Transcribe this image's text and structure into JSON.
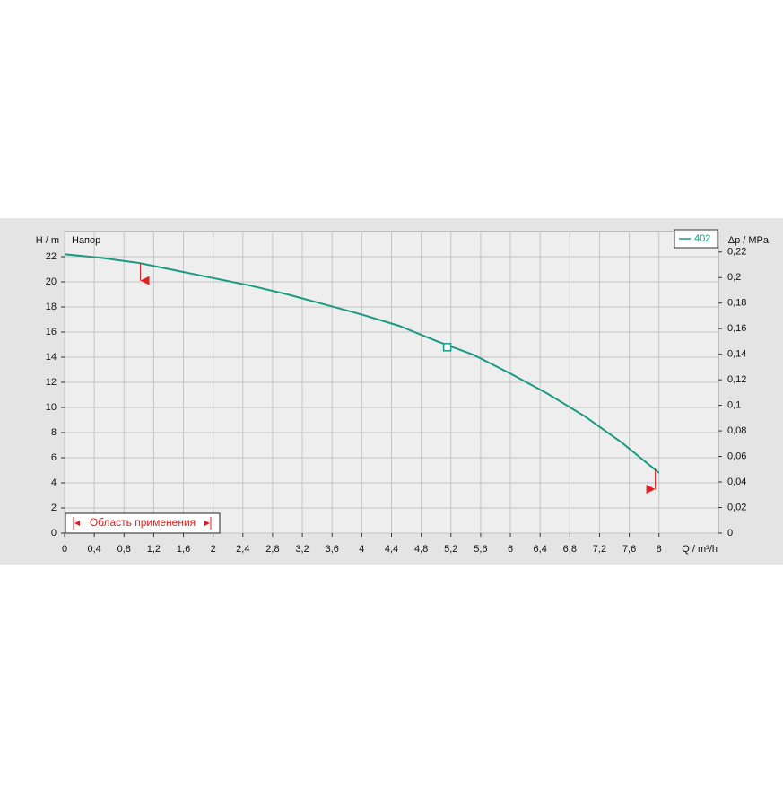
{
  "chart_data": {
    "type": "line",
    "subtitle": "Напор",
    "x_label": "Q / m³/h",
    "y_label": "H / m",
    "y2_label": "Δp / MPa",
    "xlim": [
      0,
      8.8
    ],
    "ylim": [
      0,
      24
    ],
    "y2lim": [
      0,
      0.236
    ],
    "xticks": [
      0,
      {
        "value": 0.4,
        "label": "0,4"
      },
      {
        "value": 0.8,
        "label": "0,8"
      },
      {
        "value": 1.2,
        "label": "1,2"
      },
      {
        "value": 1.6,
        "label": "1,6"
      },
      2,
      {
        "value": 2.4,
        "label": "2,4"
      },
      {
        "value": 2.8,
        "label": "2,8"
      },
      {
        "value": 3.2,
        "label": "3,2"
      },
      {
        "value": 3.6,
        "label": "3,6"
      },
      4,
      {
        "value": 4.4,
        "label": "4,4"
      },
      {
        "value": 4.8,
        "label": "4,8"
      },
      {
        "value": 5.2,
        "label": "5,2"
      },
      {
        "value": 5.6,
        "label": "5,6"
      },
      6,
      {
        "value": 6.4,
        "label": "6,4"
      },
      {
        "value": 6.8,
        "label": "6,8"
      },
      {
        "value": 7.2,
        "label": "7,2"
      },
      {
        "value": 7.6,
        "label": "7,6"
      },
      8
    ],
    "yticks": [
      0,
      2,
      4,
      6,
      8,
      10,
      12,
      14,
      16,
      18,
      20,
      22
    ],
    "y2ticks": [
      0,
      {
        "value": 0.02,
        "label": "0,02"
      },
      {
        "value": 0.04,
        "label": "0,04"
      },
      {
        "value": 0.06,
        "label": "0,06"
      },
      {
        "value": 0.08,
        "label": "0,08"
      },
      {
        "value": 0.1,
        "label": "0,1"
      },
      {
        "value": 0.12,
        "label": "0,12"
      },
      {
        "value": 0.14,
        "label": "0,14"
      },
      {
        "value": 0.16,
        "label": "0,16"
      },
      {
        "value": 0.18,
        "label": "0,18"
      },
      {
        "value": 0.2,
        "label": "0,2"
      },
      {
        "value": 0.22,
        "label": "0,22"
      }
    ],
    "grid": true,
    "legend": "top-right",
    "series": [
      {
        "name": "402",
        "color": "#1a9a80",
        "x": [
          0,
          0.5,
          1,
          1.5,
          2,
          2.5,
          3,
          3.5,
          4,
          4.5,
          5,
          5.5,
          6,
          6.5,
          7,
          7.5,
          8
        ],
        "values": [
          22.2,
          21.9,
          21.5,
          20.9,
          20.3,
          19.7,
          19.0,
          18.2,
          17.4,
          16.5,
          15.3,
          14.2,
          12.7,
          11.1,
          9.3,
          7.2,
          4.8
        ]
      }
    ],
    "operating_point": {
      "x": 5.15,
      "y": 14.8
    },
    "application_range": {
      "label": "Область применения",
      "min_marker": {
        "x": 1.02,
        "y": 20.1
      },
      "max_marker": {
        "x": 7.95,
        "y": 3.5
      },
      "color": "#e02020"
    }
  }
}
